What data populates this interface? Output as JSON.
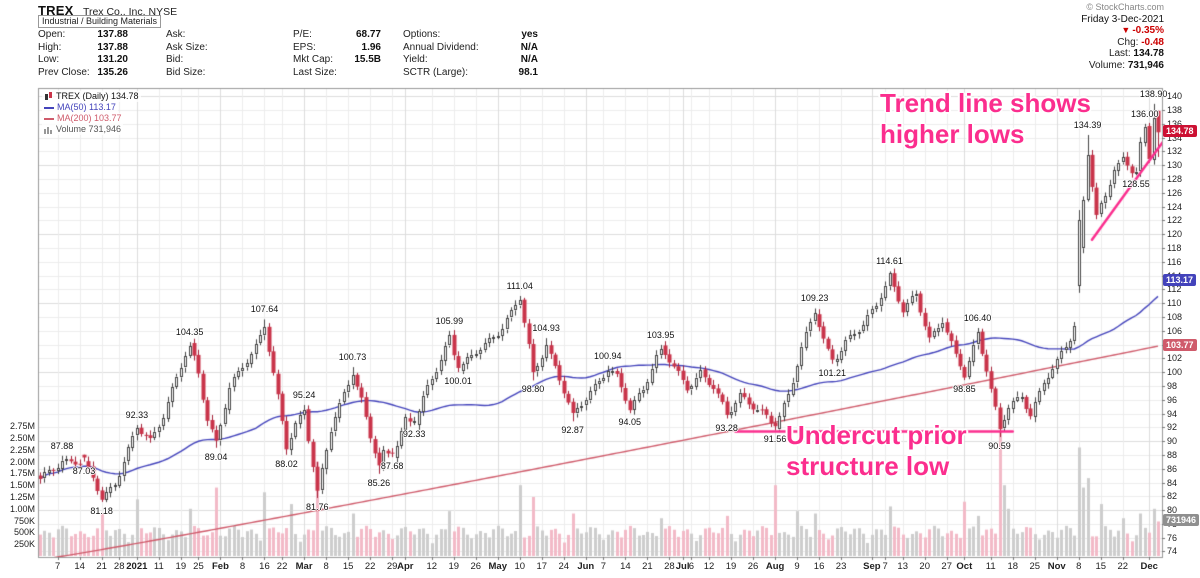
{
  "header": {
    "symbol": "TREX",
    "company": "Trex Co., Inc. NYSE",
    "copyright": "© StockCharts.com",
    "sector": "Industrial / Building Materials",
    "date": "Friday 3-Dec-2021",
    "quote_cols": [
      {
        "rows": [
          {
            "label": "Open:",
            "value": "137.88"
          },
          {
            "label": "High:",
            "value": "137.88"
          },
          {
            "label": "Low:",
            "value": "131.20"
          },
          {
            "label": "Prev Close:",
            "value": "135.26"
          }
        ]
      },
      {
        "rows": [
          {
            "label": "Ask:",
            "value": ""
          },
          {
            "label": "Ask Size:",
            "value": ""
          },
          {
            "label": "Bid:",
            "value": ""
          },
          {
            "label": "Bid Size:",
            "value": ""
          }
        ]
      },
      {
        "rows": [
          {
            "label": "P/E:",
            "value": "68.77"
          },
          {
            "label": "EPS:",
            "value": "1.96"
          },
          {
            "label": "Mkt Cap:",
            "value": "15.5B"
          },
          {
            "label": "Last Size:",
            "value": ""
          }
        ]
      },
      {
        "rows": [
          {
            "label": "Options:",
            "value": "yes"
          },
          {
            "label": "Annual Dividend:",
            "value": "N/A"
          },
          {
            "label": "Yield:",
            "value": "N/A"
          },
          {
            "label": "SCTR (Large):",
            "value": "98.1"
          }
        ]
      }
    ],
    "change_pct": "-0.35%",
    "chg_label": "Chg:",
    "chg_value": "-0.48",
    "last_label": "Last:",
    "last_value": "134.78",
    "volume_label": "Volume:",
    "volume_value": "731,946"
  },
  "legend": {
    "line1": "TREX (Daily) 134.78",
    "line2": "MA(50) 113.17",
    "line3": "MA(200) 103.77",
    "line4": "Volume 731,946"
  },
  "annotations": {
    "trend_text_line1": "Trend line shows",
    "trend_text_line2": "higher lows",
    "undercut_text_line1": "Undercut prior",
    "undercut_text_line2": "structure low"
  },
  "colors": {
    "ma50": "#4343bb",
    "ma200": "#cf5b6b",
    "annotation_pink": "#fb2e8e",
    "candle_up_fill": "#ffffff",
    "candle_up_stroke": "#444444",
    "candle_down_fill": "#c9344a",
    "candle_down_stroke": "#a52138",
    "volume_up": "#cdcdcd",
    "volume_down": "#f2bac7",
    "grid_light": "#ececec",
    "grid_dark": "#dcdcdc",
    "negative": "#cc0000"
  },
  "chart_data": {
    "type": "candlestick",
    "title": "TREX (Daily)",
    "last_close": 134.78,
    "days": 255,
    "price_axis": {
      "min": 74,
      "max": 140,
      "step": 2
    },
    "volume_axis_labels": [
      [
        "2.75M",
        2750000
      ],
      [
        "2.50M",
        2500000
      ],
      [
        "2.25M",
        2250000
      ],
      [
        "2.00M",
        2000000
      ],
      [
        "1.75M",
        1750000
      ],
      [
        "1.50M",
        1500000
      ],
      [
        "1.25M",
        1250000
      ],
      [
        "1.00M",
        1000000
      ],
      [
        "750K",
        750000
      ],
      [
        "500K",
        500000
      ],
      [
        "250K",
        250000
      ]
    ],
    "x_ticks": [
      [
        "7",
        4,
        0
      ],
      [
        "14",
        9,
        0
      ],
      [
        "21",
        14,
        0
      ],
      [
        "28",
        18,
        0
      ],
      [
        "2021",
        22,
        1
      ],
      [
        "11",
        27,
        0
      ],
      [
        "19",
        32,
        0
      ],
      [
        "25",
        36,
        0
      ],
      [
        "Feb",
        41,
        1
      ],
      [
        "8",
        46,
        0
      ],
      [
        "16",
        51,
        0
      ],
      [
        "22",
        55,
        0
      ],
      [
        "Mar",
        60,
        1
      ],
      [
        "8",
        65,
        0
      ],
      [
        "15",
        70,
        0
      ],
      [
        "22",
        75,
        0
      ],
      [
        "29",
        80,
        0
      ],
      [
        "Apr",
        83,
        1
      ],
      [
        "12",
        89,
        0
      ],
      [
        "19",
        94,
        0
      ],
      [
        "26",
        99,
        0
      ],
      [
        "May",
        104,
        1
      ],
      [
        "10",
        109,
        0
      ],
      [
        "17",
        114,
        0
      ],
      [
        "24",
        119,
        0
      ],
      [
        "Jun",
        124,
        1
      ],
      [
        "7",
        128,
        0
      ],
      [
        "14",
        133,
        0
      ],
      [
        "21",
        138,
        0
      ],
      [
        "28",
        143,
        0
      ],
      [
        "Jul",
        146,
        1
      ],
      [
        "6",
        148,
        0
      ],
      [
        "12",
        152,
        0
      ],
      [
        "19",
        157,
        0
      ],
      [
        "26",
        162,
        0
      ],
      [
        "Aug",
        167,
        1
      ],
      [
        "9",
        172,
        0
      ],
      [
        "16",
        177,
        0
      ],
      [
        "23",
        182,
        0
      ],
      [
        "Sep",
        189,
        1
      ],
      [
        "7",
        192,
        0
      ],
      [
        "13",
        196,
        0
      ],
      [
        "20",
        201,
        0
      ],
      [
        "27",
        206,
        0
      ],
      [
        "Oct",
        210,
        1
      ],
      [
        "11",
        216,
        0
      ],
      [
        "18",
        221,
        0
      ],
      [
        "25",
        226,
        0
      ],
      [
        "Nov",
        231,
        1
      ],
      [
        "8",
        236,
        0
      ],
      [
        "15",
        241,
        0
      ],
      [
        "22",
        246,
        0
      ],
      [
        "Dec",
        252,
        1
      ]
    ],
    "anchors": [
      [
        0,
        84.2
      ],
      [
        3,
        86.2
      ],
      [
        5,
        87.4
      ],
      [
        8,
        86.9
      ],
      [
        10,
        86.5
      ],
      [
        12,
        84.5
      ],
      [
        14,
        81.9
      ],
      [
        17,
        84.0
      ],
      [
        20,
        88.5
      ],
      [
        22,
        91.8
      ],
      [
        25,
        90.2
      ],
      [
        28,
        94.0
      ],
      [
        31,
        99.0
      ],
      [
        34,
        103.9
      ],
      [
        36,
        100.0
      ],
      [
        38,
        93.5
      ],
      [
        40,
        89.8
      ],
      [
        43,
        97.5
      ],
      [
        46,
        100.8
      ],
      [
        49,
        104.0
      ],
      [
        51,
        107.0
      ],
      [
        53,
        99.5
      ],
      [
        56,
        89.0
      ],
      [
        58,
        92.5
      ],
      [
        60,
        94.9
      ],
      [
        63,
        82.4
      ],
      [
        66,
        91.5
      ],
      [
        69,
        97.0
      ],
      [
        71,
        100.3
      ],
      [
        73,
        96.0
      ],
      [
        75,
        90.5
      ],
      [
        77,
        86.0
      ],
      [
        78,
        88.0
      ],
      [
        80,
        88.2
      ],
      [
        83,
        93.3
      ],
      [
        85,
        92.7
      ],
      [
        88,
        97.5
      ],
      [
        91,
        102.0
      ],
      [
        93,
        105.4
      ],
      [
        95,
        100.6
      ],
      [
        98,
        102.0
      ],
      [
        101,
        104.0
      ],
      [
        104,
        106.0
      ],
      [
        107,
        108.5
      ],
      [
        109,
        110.5
      ],
      [
        111,
        103.5
      ],
      [
        112,
        99.6
      ],
      [
        115,
        104.3
      ],
      [
        118,
        99.0
      ],
      [
        121,
        93.3
      ],
      [
        124,
        96.5
      ],
      [
        127,
        99.0
      ],
      [
        129,
        100.4
      ],
      [
        131,
        99.0
      ],
      [
        134,
        94.6
      ],
      [
        137,
        98.0
      ],
      [
        141,
        103.4
      ],
      [
        144,
        100.5
      ],
      [
        147,
        98.0
      ],
      [
        150,
        100.0
      ],
      [
        153,
        97.5
      ],
      [
        156,
        93.8
      ],
      [
        159,
        97.0
      ],
      [
        162,
        95.0
      ],
      [
        165,
        93.2
      ],
      [
        167,
        92.0
      ],
      [
        170,
        97.0
      ],
      [
        173,
        103.5
      ],
      [
        176,
        108.6
      ],
      [
        178,
        104.5
      ],
      [
        180,
        101.7
      ],
      [
        183,
        104.5
      ],
      [
        187,
        106.5
      ],
      [
        190,
        110.0
      ],
      [
        193,
        114.2
      ],
      [
        196,
        108.8
      ],
      [
        199,
        111.0
      ],
      [
        202,
        105.0
      ],
      [
        205,
        107.8
      ],
      [
        208,
        102.0
      ],
      [
        210,
        99.4
      ],
      [
        213,
        105.8
      ],
      [
        215,
        100.8
      ],
      [
        218,
        91.4
      ],
      [
        220,
        94.8
      ],
      [
        223,
        96.5
      ],
      [
        225,
        94.2
      ],
      [
        228,
        98.5
      ],
      [
        231,
        101.2
      ],
      [
        234,
        105.0
      ],
      [
        235,
        107.0
      ],
      [
        236,
        118.0
      ],
      [
        238,
        132.0
      ],
      [
        240,
        122.5
      ],
      [
        242,
        125.0
      ],
      [
        244,
        129.5
      ],
      [
        246,
        131.0
      ],
      [
        248,
        129.6
      ],
      [
        249,
        129.5
      ],
      [
        250,
        133.0
      ],
      [
        251,
        135.0
      ],
      [
        252,
        130.7
      ],
      [
        253,
        137.0
      ],
      [
        254,
        134.78
      ]
    ],
    "swing_labels": [
      [
        5,
        87.88,
        "a"
      ],
      [
        10,
        87.03,
        "b"
      ],
      [
        14,
        81.18,
        "b"
      ],
      [
        22,
        92.33,
        "a"
      ],
      [
        34,
        104.35,
        "a"
      ],
      [
        40,
        89.04,
        "b"
      ],
      [
        51,
        107.64,
        "a"
      ],
      [
        56,
        88.02,
        "b"
      ],
      [
        60,
        95.24,
        "a"
      ],
      [
        63,
        81.76,
        "b"
      ],
      [
        71,
        100.73,
        "a"
      ],
      [
        77,
        85.26,
        "b"
      ],
      [
        80,
        87.68,
        "b"
      ],
      [
        85,
        92.33,
        "b"
      ],
      [
        93,
        105.99,
        "a"
      ],
      [
        95,
        100.01,
        "b"
      ],
      [
        109,
        111.04,
        "a"
      ],
      [
        112,
        98.8,
        "b"
      ],
      [
        115,
        104.93,
        "a"
      ],
      [
        121,
        92.87,
        "b"
      ],
      [
        129,
        100.94,
        "a"
      ],
      [
        134,
        94.05,
        "b"
      ],
      [
        141,
        103.95,
        "a"
      ],
      [
        156,
        93.28,
        "b"
      ],
      [
        167,
        91.56,
        "b"
      ],
      [
        176,
        109.23,
        "a"
      ],
      [
        180,
        101.21,
        "b"
      ],
      [
        193,
        114.61,
        "a"
      ],
      [
        210,
        98.85,
        "b"
      ],
      [
        213,
        106.4,
        "a"
      ],
      [
        218,
        90.59,
        "b"
      ],
      [
        238,
        134.39,
        "a"
      ],
      [
        249,
        128.55,
        "b"
      ],
      [
        251,
        136.0,
        "a"
      ],
      [
        253,
        138.9,
        "a"
      ]
    ],
    "volume_spikes": {
      "14": 900000,
      "22": 1200000,
      "34": 1000000,
      "40": 1450000,
      "51": 1350000,
      "57": 1100000,
      "63": 2000000,
      "71": 900000,
      "93": 950000,
      "109": 1500000,
      "112": 1250000,
      "121": 900000,
      "141": 800000,
      "156": 850000,
      "167": 1500000,
      "172": 950000,
      "176": 900000,
      "193": 1050000,
      "210": 1150000,
      "213": 850000,
      "218": 2650000,
      "219": 1500000,
      "220": 1000000,
      "236": 2300000,
      "237": 1450000,
      "238": 1650000,
      "241": 1100000,
      "246": 800000,
      "250": 900000,
      "253": 1000000,
      "254": 731946
    },
    "gap_day": {
      "day": 236,
      "ohlc": [
        112.5,
        123.5,
        111.5,
        122.0
      ]
    },
    "last_day_ohlc": [
      137.88,
      137.88,
      131.2,
      134.78
    ],
    "ma50_value": 113.17,
    "ma200_value": 103.77,
    "ma200_start": 72.8,
    "volume_last": 731946,
    "y_badges": [
      {
        "text": "134.78",
        "price": 134.78,
        "bg": "#cc1133"
      },
      {
        "text": "113.17",
        "price": 113.17,
        "bg": "#4343bb"
      },
      {
        "text": "103.77",
        "price": 103.77,
        "bg": "#cf5b6b"
      }
    ],
    "volume_badge": {
      "text": "731946",
      "value": 731946,
      "bg": "#8f8f8f"
    },
    "trend_line": {
      "d1": 239,
      "p1": 119.2,
      "d2": 256.5,
      "p2": 134.6
    },
    "structure_line": {
      "d1": 158,
      "d2": 221,
      "price": 91.4
    },
    "legend_position": "top-left",
    "grid": true
  }
}
